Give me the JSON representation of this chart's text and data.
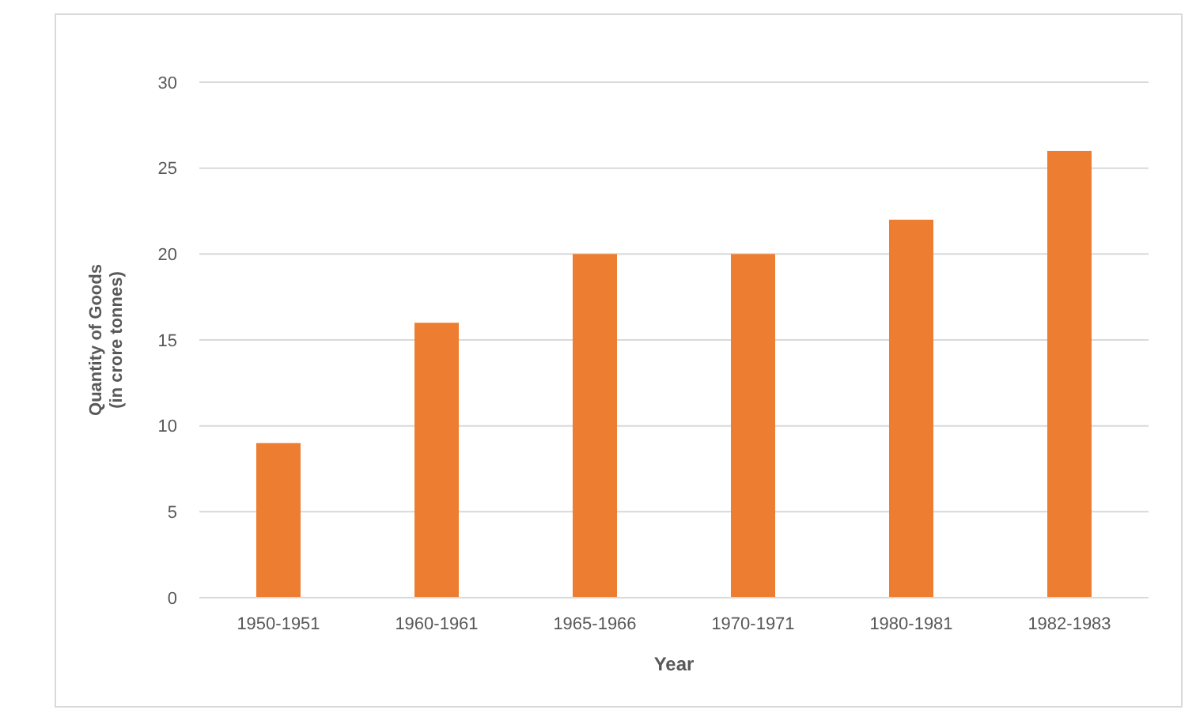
{
  "chart_data": {
    "type": "bar",
    "xlabel": "Year",
    "ylabel": "Quantity of Goods\n(in crore tonnes)",
    "categories": [
      "1950-1951",
      "1960-1961",
      "1965-1966",
      "1970-1971",
      "1980-1981",
      "1982-1983"
    ],
    "values": [
      9,
      16,
      20,
      20,
      22,
      26
    ],
    "color": "#ed7d31",
    "ylim": [
      0,
      30
    ],
    "yticks": [
      0,
      5,
      10,
      15,
      20,
      25,
      30
    ],
    "grid": "y"
  }
}
